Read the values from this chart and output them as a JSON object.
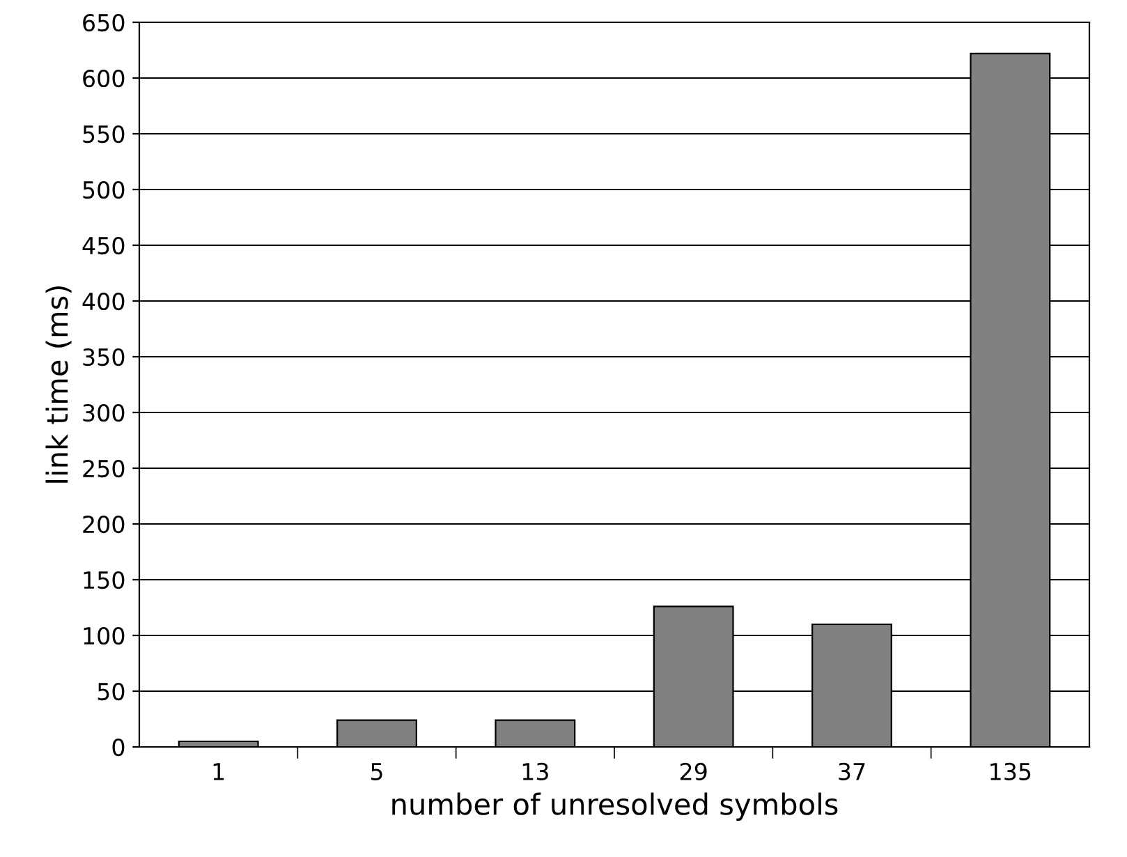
{
  "chart_data": {
    "type": "bar",
    "xlabel": "number of unresolved symbols",
    "ylabel": "link time (ms)",
    "categories": [
      "1",
      "5",
      "13",
      "29",
      "37",
      "135"
    ],
    "values": [
      5,
      24,
      24,
      126,
      110,
      622
    ],
    "color": "#808080",
    "ylim": [
      0,
      650
    ],
    "yticks": [
      0,
      50,
      100,
      150,
      200,
      250,
      300,
      350,
      400,
      450,
      500,
      550,
      600,
      650
    ],
    "grid": "y",
    "legend": false
  }
}
